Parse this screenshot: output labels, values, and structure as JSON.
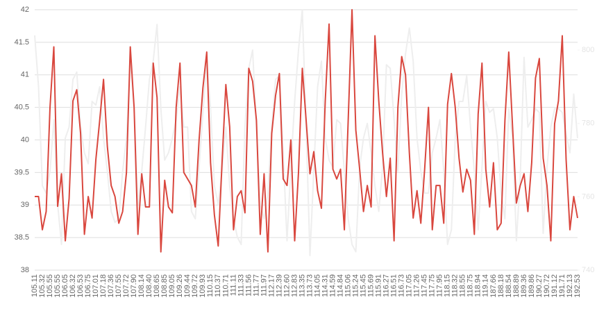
{
  "chart_data": {
    "type": "line",
    "categories": [
      "105.11",
      null,
      "105.32",
      null,
      "105.55",
      null,
      "105.55",
      null,
      "106.05",
      null,
      "106.32",
      null,
      "106.53",
      null,
      "106.75",
      null,
      "107.01",
      null,
      "107.18",
      null,
      "107.36",
      null,
      "107.55",
      null,
      "107.72",
      null,
      "107.90",
      null,
      "108.14",
      null,
      "108.40",
      null,
      "108.65",
      null,
      "108.85",
      null,
      "109.05",
      null,
      "109.26",
      null,
      "109.44",
      null,
      "109.72",
      null,
      "109.93",
      null,
      "110.15",
      null,
      "110.37",
      null,
      "110.71",
      null,
      "111.11",
      null,
      "111.33",
      null,
      "111.56",
      null,
      "111.77",
      null,
      "111.97",
      null,
      "112.17",
      null,
      "112.39",
      null,
      "112.60",
      null,
      "112.83",
      null,
      "113.35",
      null,
      "113.73",
      null,
      "114.05",
      null,
      "114.31",
      null,
      "114.59",
      null,
      "114.84",
      null,
      "115.06",
      null,
      "115.24",
      null,
      "115.45",
      null,
      "115.69",
      null,
      "115.91",
      null,
      "116.27",
      null,
      "116.51",
      null,
      "116.73",
      null,
      "117.05",
      null,
      "117.26",
      null,
      "117.45",
      null,
      "117.75",
      null,
      "117.95",
      null,
      "118.15",
      null,
      "118.32",
      null,
      "118.55",
      null,
      "118.75",
      null,
      "118.94",
      null,
      "119.14",
      null,
      "187.66",
      null,
      "188.18",
      null,
      "188.54",
      null,
      "188.89",
      null,
      "189.36",
      null,
      "189.86",
      null,
      "190.27",
      null,
      "190.72",
      null,
      "191.12",
      null,
      "191.71",
      null,
      "192.13",
      null,
      "192.53"
    ],
    "series": [
      {
        "color": "#eeeeee",
        "axis": "y2",
        "values": [
          804,
          790,
          763,
          761,
          767,
          781,
          758,
          747,
          776,
          779,
          792,
          794,
          779,
          772,
          769,
          786,
          785,
          790,
          776,
          767,
          756,
          753,
          754,
          767,
          776,
          797,
          784,
          758,
          767,
          779,
          792,
          797,
          807,
          784,
          770,
          772,
          776,
          781,
          790,
          779,
          779,
          756,
          754,
          768,
          783,
          797,
          784,
          763,
          758,
          767,
          779,
          763,
          754,
          749,
          747,
          779,
          795,
          800,
          779,
          758,
          754,
          761,
          779,
          792,
          793,
          772,
          748,
          768,
          786,
          800,
          811,
          779,
          744,
          767,
          790,
          797,
          776,
          770,
          768,
          781,
          780,
          767,
          754,
          747,
          745,
          768,
          776,
          780,
          772,
          763,
          756,
          768,
          796,
          795,
          781,
          767,
          788,
          799,
          806,
          797,
          776,
          767,
          761,
          761,
          772,
          776,
          781,
          767,
          747,
          751,
          776,
          786,
          786,
          793,
          779,
          767,
          751,
          768,
          786,
          783,
          784,
          776,
          761,
          754,
          784,
          776,
          748,
          765,
          798,
          779,
          781,
          784,
          783,
          750,
          768,
          779,
          784,
          784,
          783,
          777,
          772,
          788,
          776
        ]
      },
      {
        "color": "#d9473e",
        "values": [
          39.13,
          39.13,
          38.62,
          38.9,
          40.5,
          41.43,
          38.98,
          39.48,
          38.45,
          39.1,
          40.6,
          40.77,
          40.1,
          38.55,
          39.13,
          38.8,
          39.7,
          40.3,
          40.93,
          39.9,
          39.3,
          39.13,
          38.72,
          38.9,
          39.5,
          41.43,
          40.5,
          38.55,
          39.48,
          38.97,
          38.97,
          41.18,
          40.65,
          38.28,
          39.38,
          38.97,
          38.88,
          40.5,
          41.18,
          39.5,
          39.4,
          39.3,
          38.97,
          40.0,
          40.8,
          41.35,
          39.65,
          38.85,
          38.37,
          39.65,
          40.85,
          40.2,
          38.62,
          39.13,
          39.22,
          38.88,
          41.1,
          40.9,
          40.3,
          38.55,
          39.48,
          38.28,
          40.1,
          40.68,
          41.02,
          39.4,
          39.3,
          40.0,
          38.45,
          39.5,
          41.1,
          40.3,
          39.48,
          39.82,
          39.22,
          38.95,
          40.6,
          41.78,
          39.55,
          39.4,
          39.55,
          38.62,
          40.3,
          42.0,
          40.15,
          39.55,
          38.9,
          39.3,
          38.97,
          41.6,
          40.6,
          39.8,
          39.13,
          39.72,
          38.45,
          40.5,
          41.28,
          41.0,
          39.8,
          38.8,
          39.22,
          38.72,
          39.55,
          40.5,
          38.62,
          39.3,
          39.3,
          38.72,
          40.55,
          41.02,
          40.5,
          39.72,
          39.2,
          39.55,
          39.38,
          38.55,
          40.4,
          41.18,
          39.55,
          38.97,
          39.65,
          38.62,
          38.72,
          40.3,
          41.35,
          40.2,
          39.03,
          39.3,
          39.48,
          38.9,
          39.65,
          40.95,
          41.25,
          39.72,
          39.3,
          38.45,
          40.25,
          40.6,
          41.6,
          39.7,
          38.62,
          39.13,
          38.8
        ]
      }
    ],
    "ylim": [
      38,
      42
    ],
    "yticks": [
      38,
      38.5,
      39,
      39.5,
      40,
      40.5,
      41,
      41.5,
      42
    ],
    "y2lim": [
      740,
      811
    ],
    "y2ticks": [
      740,
      760,
      780,
      800
    ],
    "grid": true
  }
}
